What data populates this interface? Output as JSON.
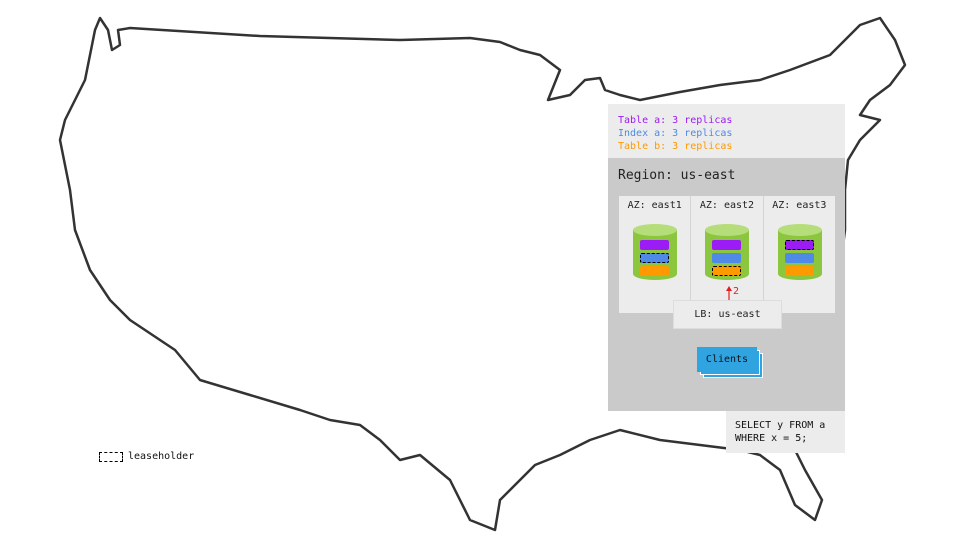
{
  "legend": [
    {
      "label": "Table a: 3 replicas",
      "color": "#9b1cf5"
    },
    {
      "label": "Index a: 3 replicas",
      "color": "#4e8ae6"
    },
    {
      "label": "Table b: 3 replicas",
      "color": "#ff9900"
    }
  ],
  "region": {
    "title": "Region: us-east"
  },
  "azs": [
    {
      "label": "AZ: east1",
      "leaseholder": "Index a"
    },
    {
      "label": "AZ: east2",
      "leaseholder": "Table b"
    },
    {
      "label": "AZ: east3",
      "leaseholder": "Table a"
    }
  ],
  "node_color": "#8cc63f",
  "load_balancer": "LB: us-east",
  "arrow_label": "2",
  "clients": "Clients",
  "query": [
    "SELECT y FROM a",
    "WHERE x = 5;"
  ],
  "key": {
    "label": "leaseholder"
  }
}
